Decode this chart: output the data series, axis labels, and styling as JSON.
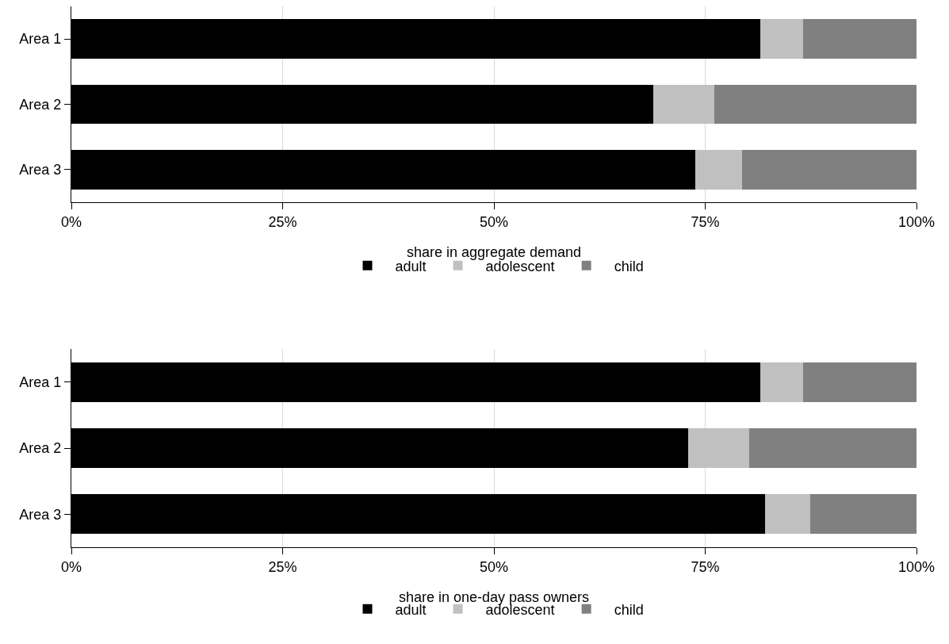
{
  "chart_data": [
    {
      "type": "bar",
      "orientation": "horizontal",
      "stacked": true,
      "categories": [
        "Area 1",
        "Area 2",
        "Area 3"
      ],
      "series": [
        {
          "name": "adult",
          "color": "#000000",
          "values": [
            81.5,
            68.9,
            73.8
          ]
        },
        {
          "name": "adolescent",
          "color": "#c0c0c0",
          "values": [
            5.1,
            7.2,
            5.6
          ]
        },
        {
          "name": "child",
          "color": "#808080",
          "values": [
            13.4,
            23.9,
            20.6
          ]
        }
      ],
      "xlabel": "share in aggregate demand",
      "xlim": [
        0,
        100
      ],
      "xticks": [
        {
          "value": 0,
          "label": "0%"
        },
        {
          "value": 25,
          "label": "25%"
        },
        {
          "value": 50,
          "label": "50%"
        },
        {
          "value": 75,
          "label": "75%"
        },
        {
          "value": 100,
          "label": "100%"
        }
      ],
      "grid": "x",
      "legend": "bottom"
    },
    {
      "type": "bar",
      "orientation": "horizontal",
      "stacked": true,
      "categories": [
        "Area 1",
        "Area 2",
        "Area 3"
      ],
      "series": [
        {
          "name": "adult",
          "color": "#000000",
          "values": [
            81.5,
            73.0,
            82.1
          ]
        },
        {
          "name": "adolescent",
          "color": "#c0c0c0",
          "values": [
            5.1,
            7.2,
            5.3
          ]
        },
        {
          "name": "child",
          "color": "#808080",
          "values": [
            13.4,
            19.8,
            12.6
          ]
        }
      ],
      "xlabel": "share in one-day pass owners",
      "xlim": [
        0,
        100
      ],
      "xticks": [
        {
          "value": 0,
          "label": "0%"
        },
        {
          "value": 25,
          "label": "25%"
        },
        {
          "value": 50,
          "label": "50%"
        },
        {
          "value": 75,
          "label": "75%"
        },
        {
          "value": 100,
          "label": "100%"
        }
      ],
      "grid": "x",
      "legend": "bottom"
    }
  ]
}
